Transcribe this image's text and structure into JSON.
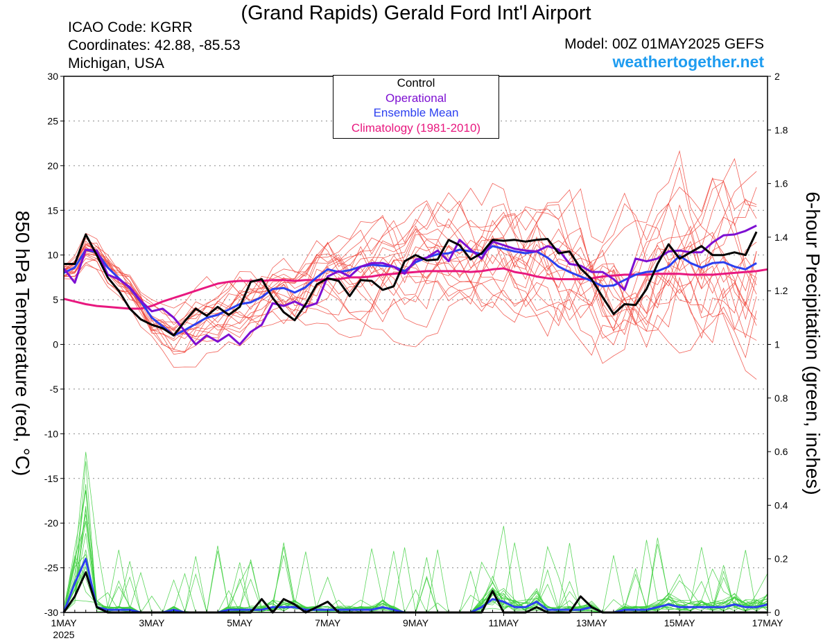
{
  "header": {
    "title": "(Grand Rapids) Gerald Ford Int'l Airport",
    "icao": "ICAO Code: KGRR",
    "coords": "Coordinates: 42.88, -85.53",
    "region": "Michigan, USA",
    "model": "Model: 00Z 01MAY2025 GEFS",
    "site": "weathertogether.net"
  },
  "colors": {
    "control": "#000000",
    "operational": "#7d0fd2",
    "ensemble_mean": "#2b3ff0",
    "climatology": "#e8187f",
    "members_temp": "#f0443a",
    "members_precip": "#3ccf3c",
    "site": "#1e9cf0"
  },
  "chart_data": {
    "type": "line",
    "title": "(Grand Rapids) Gerald Ford Int'l Airport",
    "ylabel": "850 hPa Temperature (red, °C)",
    "y2label": "6-hour Precipitation (green, inches)",
    "ylim": [
      -30,
      30
    ],
    "y2lim": [
      0,
      2
    ],
    "yticks": [
      30,
      25,
      20,
      15,
      10,
      5,
      0,
      -5,
      -10,
      -15,
      -20,
      -25,
      -30
    ],
    "y2ticks": [
      2,
      1.8,
      1.6,
      1.4,
      1.2,
      1,
      0.8,
      0.6,
      0.4,
      0.2,
      0
    ],
    "xlim": [
      0,
      64
    ],
    "xticks": [
      {
        "x": 0,
        "label": "1MAY",
        "sub": "2025"
      },
      {
        "x": 8,
        "label": "3MAY"
      },
      {
        "x": 16,
        "label": "5MAY"
      },
      {
        "x": 24,
        "label": "7MAY"
      },
      {
        "x": 32,
        "label": "9MAY"
      },
      {
        "x": 40,
        "label": "11MAY"
      },
      {
        "x": 48,
        "label": "13MAY"
      },
      {
        "x": 56,
        "label": "15MAY"
      },
      {
        "x": 64,
        "label": "17MAY"
      }
    ],
    "grid": true,
    "legend_position": "top-center",
    "legend": [
      "Control",
      "Operational",
      "Ensemble Mean",
      "Climatology (1981-2010)"
    ],
    "series": [
      {
        "name": "Control",
        "axis": "temp",
        "color": "#000000",
        "values": [
          9,
          9,
          12.3,
          10,
          7.5,
          6,
          4,
          2.8,
          2.2,
          1.8,
          1,
          2.6,
          4,
          3.2,
          4.2,
          3.3,
          4.2,
          7,
          7.3,
          5.2,
          3.6,
          2.7,
          4.5,
          6.7,
          7.4,
          7.1,
          5.4,
          7.2,
          7.1,
          6.1,
          6.5,
          9.3,
          10,
          9.4,
          9.5,
          11.7,
          11.1,
          9.5,
          10.2,
          11.7,
          11.6,
          11.7,
          11.5,
          11.7,
          11.8,
          10.2,
          10.4,
          8.5,
          7.3,
          5.3,
          3.4,
          4.5,
          4.4,
          6.2,
          9,
          11.2,
          9.6,
          10.3,
          11,
          10,
          10,
          10.3,
          10,
          12.6
        ]
      },
      {
        "name": "Operational",
        "axis": "temp",
        "color": "#7d0fd2",
        "values": [
          8.5,
          6.9,
          10.6,
          10.5,
          7.8,
          7.3,
          6.4,
          4.9,
          3.7,
          4,
          3,
          1.5,
          0,
          1,
          0.3,
          1.1,
          0,
          1.4,
          2.2,
          4.6,
          4.3,
          4.8,
          4.2,
          4.6,
          7.6,
          8.2,
          7.6,
          8.7,
          9.1,
          9.1,
          8.7,
          7.9,
          9.5,
          9.7,
          10.5,
          9.3,
          11.7,
          10.6,
          9.6,
          11.5,
          11.1,
          10.7,
          10.5,
          10.4,
          11,
          10.6,
          9,
          8.8,
          8.1,
          8.1,
          7.3,
          6.1,
          9.6,
          9.3,
          9.6,
          10.4,
          10.5,
          10.3,
          10.3,
          11.4,
          12.2,
          12.3,
          12.7,
          13.3
        ]
      },
      {
        "name": "Ensemble Mean",
        "axis": "temp",
        "color": "#2b3ff0",
        "values": [
          8,
          8.6,
          10.6,
          10.3,
          8.6,
          7.4,
          6.3,
          4.8,
          3,
          2,
          1,
          1.6,
          2.3,
          3,
          3.3,
          3.9,
          4.5,
          4.7,
          5.3,
          6.2,
          6.3,
          5.8,
          6.4,
          7.5,
          8.4,
          8.1,
          8.3,
          8.7,
          8.9,
          8.8,
          8.7,
          8.2,
          9.2,
          9.7,
          10.1,
          10.2,
          10.6,
          10.4,
          10.1,
          11,
          10.7,
          10.4,
          10.2,
          10.4,
          9.7,
          8.7,
          8.1,
          7.6,
          7.1,
          6.5,
          6.6,
          7.2,
          7.8,
          8.1,
          8.2,
          8.7,
          9.9,
          9.1,
          8.6,
          9.1,
          9.2,
          8.7,
          8.4,
          9.1
        ]
      },
      {
        "name": "Climatology (1981-2010)",
        "axis": "temp",
        "color": "#e8187f",
        "values": [
          5.1,
          4.8,
          4.5,
          4.3,
          4.2,
          4.1,
          4,
          4,
          4.3,
          4.8,
          5.2,
          5.6,
          6,
          6.4,
          6.8,
          7,
          7.1,
          7.1,
          7.1,
          7.2,
          7.2,
          7.1,
          7.2,
          7.2,
          7.3,
          7.3,
          7.5,
          7.5,
          7.6,
          7.8,
          7.9,
          8,
          8.1,
          8.2,
          8.2,
          8.2,
          8.2,
          8.1,
          8.2,
          8.4,
          8.5,
          8.1,
          7.9,
          7.6,
          7.4,
          7.3,
          7.3,
          7.3,
          7.4,
          7.6,
          7.7,
          7.8,
          7.8,
          7.8,
          7.9,
          7.9,
          7.9,
          7.8,
          7.8,
          7.8,
          7.9,
          8,
          8.1,
          8.2,
          8.4
        ]
      },
      {
        "name": "Control Precip",
        "axis": "precip",
        "color": "#000000",
        "values": [
          0,
          0.06,
          0.15,
          0.02,
          0,
          0,
          0,
          0,
          0,
          0,
          0,
          0,
          0,
          0,
          0,
          0,
          0,
          0,
          0.05,
          0,
          0.05,
          0.03,
          0,
          0.02,
          0.04,
          0,
          0,
          0,
          0,
          0,
          0,
          0,
          0,
          0,
          0,
          0,
          0,
          0,
          0,
          0.08,
          0,
          0,
          0,
          0.02,
          0,
          0,
          0,
          0.06,
          0.02,
          0,
          0,
          0,
          0,
          0,
          0,
          0,
          0,
          0,
          0,
          0,
          0,
          0,
          0,
          0,
          0
        ]
      },
      {
        "name": "Ensemble Mean Precip",
        "axis": "precip",
        "color": "#2b3ff0",
        "values": [
          0,
          0.11,
          0.2,
          0.02,
          0.01,
          0.01,
          0.01,
          0,
          0,
          0,
          0.01,
          0,
          0,
          0,
          0,
          0.01,
          0.01,
          0.01,
          0.01,
          0.02,
          0.02,
          0.02,
          0.01,
          0.01,
          0.01,
          0.01,
          0.01,
          0.01,
          0.01,
          0.02,
          0.01,
          0,
          0,
          0,
          0,
          0,
          0,
          0,
          0.02,
          0.05,
          0.04,
          0.02,
          0.02,
          0.04,
          0.01,
          0.01,
          0.01,
          0.01,
          0.02,
          0,
          0,
          0.01,
          0.01,
          0.01,
          0.02,
          0.03,
          0.02,
          0.02,
          0.02,
          0.02,
          0.02,
          0.03,
          0.02,
          0.02,
          0.03
        ]
      }
    ]
  }
}
